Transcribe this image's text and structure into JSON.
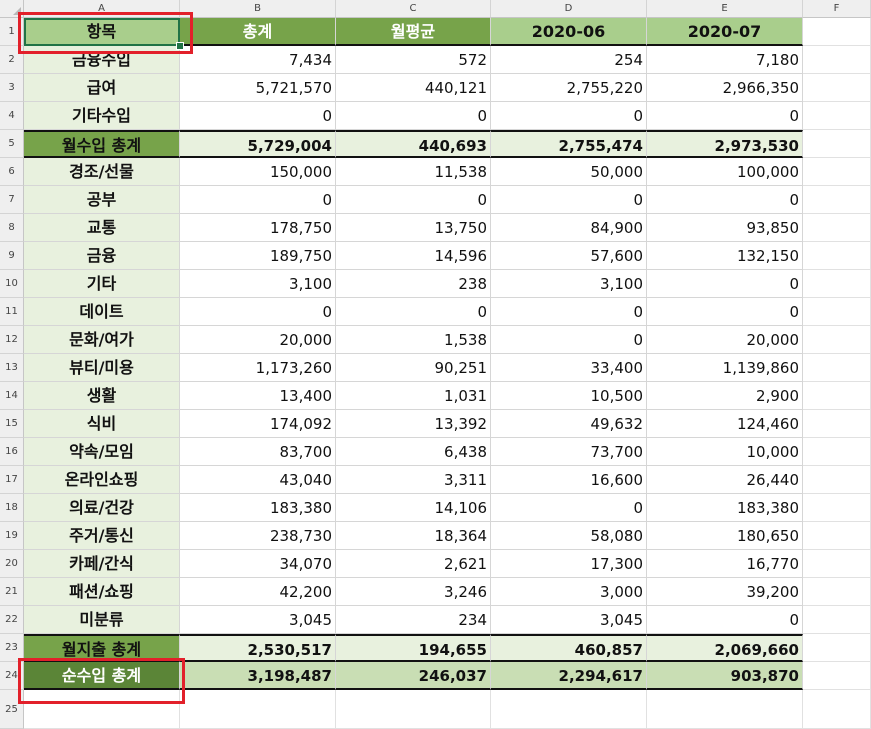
{
  "columns": [
    "A",
    "B",
    "C",
    "D",
    "E",
    "F"
  ],
  "row_numbers": [
    "1",
    "2",
    "3",
    "4",
    "5",
    "6",
    "7",
    "8",
    "9",
    "10",
    "11",
    "12",
    "13",
    "14",
    "15",
    "16",
    "17",
    "18",
    "19",
    "20",
    "21",
    "22",
    "23",
    "24",
    "25"
  ],
  "header": {
    "item": "항목",
    "total": "총계",
    "monthly_avg": "월평균",
    "m1": "2020-06",
    "m2": "2020-07"
  },
  "rows": [
    {
      "label": "금융수입",
      "total": "7,434",
      "avg": "572",
      "m1": "254",
      "m2": "7,180"
    },
    {
      "label": "급여",
      "total": "5,721,570",
      "avg": "440,121",
      "m1": "2,755,220",
      "m2": "2,966,350"
    },
    {
      "label": "기타수입",
      "total": "0",
      "avg": "0",
      "m1": "0",
      "m2": "0"
    },
    {
      "label": "월수입 총계",
      "total": "5,729,004",
      "avg": "440,693",
      "m1": "2,755,474",
      "m2": "2,973,530"
    },
    {
      "label": "경조/선물",
      "total": "150,000",
      "avg": "11,538",
      "m1": "50,000",
      "m2": "100,000"
    },
    {
      "label": "공부",
      "total": "0",
      "avg": "0",
      "m1": "0",
      "m2": "0"
    },
    {
      "label": "교통",
      "total": "178,750",
      "avg": "13,750",
      "m1": "84,900",
      "m2": "93,850"
    },
    {
      "label": "금융",
      "total": "189,750",
      "avg": "14,596",
      "m1": "57,600",
      "m2": "132,150"
    },
    {
      "label": "기타",
      "total": "3,100",
      "avg": "238",
      "m1": "3,100",
      "m2": "0"
    },
    {
      "label": "데이트",
      "total": "0",
      "avg": "0",
      "m1": "0",
      "m2": "0"
    },
    {
      "label": "문화/여가",
      "total": "20,000",
      "avg": "1,538",
      "m1": "0",
      "m2": "20,000"
    },
    {
      "label": "뷰티/미용",
      "total": "1,173,260",
      "avg": "90,251",
      "m1": "33,400",
      "m2": "1,139,860"
    },
    {
      "label": "생활",
      "total": "13,400",
      "avg": "1,031",
      "m1": "10,500",
      "m2": "2,900"
    },
    {
      "label": "식비",
      "total": "174,092",
      "avg": "13,392",
      "m1": "49,632",
      "m2": "124,460"
    },
    {
      "label": "약속/모임",
      "total": "83,700",
      "avg": "6,438",
      "m1": "73,700",
      "m2": "10,000"
    },
    {
      "label": "온라인쇼핑",
      "total": "43,040",
      "avg": "3,311",
      "m1": "16,600",
      "m2": "26,440"
    },
    {
      "label": "의료/건강",
      "total": "183,380",
      "avg": "14,106",
      "m1": "0",
      "m2": "183,380"
    },
    {
      "label": "주거/통신",
      "total": "238,730",
      "avg": "18,364",
      "m1": "58,080",
      "m2": "180,650"
    },
    {
      "label": "카페/간식",
      "total": "34,070",
      "avg": "2,621",
      "m1": "17,300",
      "m2": "16,770"
    },
    {
      "label": "패션/쇼핑",
      "total": "42,200",
      "avg": "3,246",
      "m1": "3,000",
      "m2": "39,200"
    },
    {
      "label": "미분류",
      "total": "3,045",
      "avg": "234",
      "m1": "3,045",
      "m2": "0"
    },
    {
      "label": "월지출 총계",
      "total": "2,530,517",
      "avg": "194,655",
      "m1": "460,857",
      "m2": "2,069,660"
    },
    {
      "label": "순수입 총계",
      "total": "3,198,487",
      "avg": "246,037",
      "m1": "2,294,617",
      "m2": "903,870"
    }
  ],
  "colors": {
    "header_green": "#77a34a",
    "header_light": "#a9ce8c",
    "label_bg": "#e8f1de",
    "net_label": "#5b8537",
    "net_value_bg": "#c9deb4",
    "highlight_red": "#e2202a"
  }
}
